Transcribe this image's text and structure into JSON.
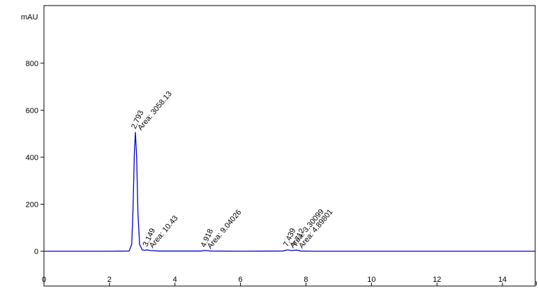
{
  "chart_data": {
    "type": "line",
    "y_label": "mAU",
    "x_label": "min",
    "xlim": [
      0,
      15
    ],
    "xticks": [
      0,
      2,
      4,
      6,
      8,
      10,
      12,
      14
    ],
    "ylim": [
      -148,
      1045
    ],
    "yticks": [
      0,
      200,
      400,
      600,
      800
    ],
    "series": [
      {
        "color": "#0000cc",
        "x": [
          0,
          1,
          2,
          2.6,
          2.68,
          2.72,
          2.76,
          2.793,
          2.83,
          2.87,
          2.92,
          3.0,
          3.1,
          3.149,
          3.25,
          3.5,
          4.8,
          4.918,
          5.1,
          6,
          7.3,
          7.439,
          7.55,
          7.712,
          7.85,
          8.2,
          10,
          12,
          15
        ],
        "values": [
          0,
          0,
          0,
          1,
          30,
          180,
          420,
          507,
          400,
          160,
          30,
          6,
          4,
          6,
          3,
          1,
          1,
          3,
          1,
          0,
          1,
          6,
          3,
          5,
          1,
          0,
          0,
          0,
          0
        ]
      }
    ],
    "peaks": [
      {
        "time": 2.793,
        "height": 507,
        "area_label": "Area: 3058.13"
      },
      {
        "time": 3.149,
        "height": 6,
        "area_label": "Area: 10.43"
      },
      {
        "time": 4.918,
        "height": 3,
        "area_label": "Area: 9.04026"
      },
      {
        "time": 7.439,
        "height": 6,
        "area_label": "Area: 3.30099"
      },
      {
        "time": 7.712,
        "height": 5,
        "area_label": "Area: 4.89801"
      }
    ]
  }
}
